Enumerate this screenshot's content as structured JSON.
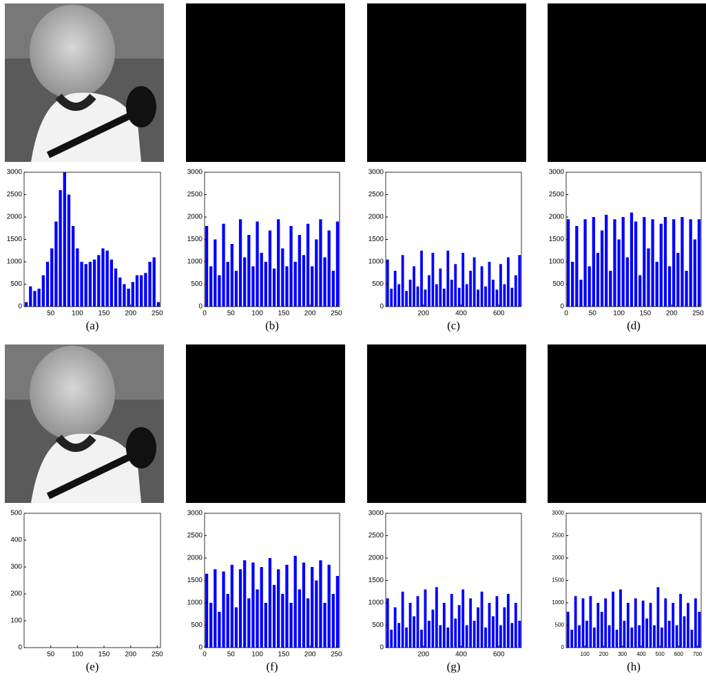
{
  "chart_data": [
    {
      "type": "histogram",
      "caption": "(a)",
      "color": "#0000ff",
      "xlim": [
        0,
        256
      ],
      "ylim": [
        0,
        3000
      ],
      "xticks": [
        50,
        100,
        150,
        200,
        250
      ],
      "yticks": [
        0,
        500,
        1000,
        1500,
        2000,
        2500,
        3000
      ],
      "bins": [
        0,
        8,
        16,
        24,
        32,
        40,
        48,
        56,
        64,
        72,
        80,
        88,
        96,
        104,
        112,
        120,
        128,
        136,
        144,
        152,
        160,
        168,
        176,
        184,
        192,
        200,
        208,
        216,
        224,
        232,
        240,
        248,
        256
      ],
      "values": [
        100,
        450,
        350,
        400,
        700,
        1000,
        1300,
        1900,
        2600,
        3000,
        2500,
        1800,
        1300,
        1000,
        950,
        1000,
        1050,
        1150,
        1300,
        1250,
        1050,
        850,
        650,
        500,
        400,
        550,
        700,
        700,
        750,
        1000,
        1100,
        100
      ]
    },
    {
      "type": "histogram",
      "caption": "(b)",
      "color": "#0000ff",
      "xlim": [
        0,
        256
      ],
      "ylim": [
        0,
        3000
      ],
      "xticks": [
        0,
        50,
        100,
        150,
        200,
        250
      ],
      "yticks": [
        0,
        500,
        1000,
        1500,
        2000,
        2500,
        3000
      ],
      "bins": [
        0,
        8,
        16,
        24,
        32,
        40,
        48,
        56,
        64,
        72,
        80,
        88,
        96,
        104,
        112,
        120,
        128,
        136,
        144,
        152,
        160,
        168,
        176,
        184,
        192,
        200,
        208,
        216,
        224,
        232,
        240,
        248,
        256
      ],
      "values": [
        1800,
        900,
        1500,
        700,
        1850,
        1000,
        1400,
        800,
        1950,
        1100,
        1600,
        900,
        1900,
        1200,
        1000,
        1700,
        850,
        1950,
        1300,
        900,
        1800,
        1000,
        1600,
        1150,
        1850,
        900,
        1500,
        1950,
        1100,
        1700,
        800,
        1900
      ]
    },
    {
      "type": "histogram",
      "caption": "(c)",
      "color": "#0000ff",
      "xlim": [
        0,
        720
      ],
      "ylim": [
        0,
        3000
      ],
      "xticks": [
        200,
        400,
        600
      ],
      "yticks": [
        0,
        500,
        1000,
        1500,
        2000,
        2500,
        3000
      ],
      "bins": [
        0,
        20,
        40,
        60,
        80,
        100,
        120,
        140,
        160,
        180,
        200,
        220,
        240,
        260,
        280,
        300,
        320,
        340,
        360,
        380,
        400,
        420,
        440,
        460,
        480,
        500,
        520,
        540,
        560,
        580,
        600,
        620,
        640,
        660,
        680,
        700,
        720
      ],
      "values": [
        1050,
        400,
        800,
        500,
        1150,
        350,
        600,
        900,
        450,
        1250,
        380,
        700,
        1200,
        500,
        850,
        400,
        1250,
        600,
        950,
        420,
        1200,
        500,
        800,
        1100,
        380,
        900,
        450,
        1000,
        600,
        380,
        950,
        500,
        1100,
        420,
        700,
        1150
      ]
    },
    {
      "type": "histogram",
      "caption": "(d)",
      "color": "#0000ff",
      "xlim": [
        0,
        256
      ],
      "ylim": [
        0,
        3000
      ],
      "xticks": [
        0,
        50,
        100,
        150,
        200,
        250
      ],
      "yticks": [
        0,
        500,
        1000,
        1500,
        2000,
        2500,
        3000
      ],
      "bins": [
        0,
        8,
        16,
        24,
        32,
        40,
        48,
        56,
        64,
        72,
        80,
        88,
        96,
        104,
        112,
        120,
        128,
        136,
        144,
        152,
        160,
        168,
        176,
        184,
        192,
        200,
        208,
        216,
        224,
        232,
        240,
        248,
        256
      ],
      "values": [
        1950,
        1000,
        1800,
        600,
        1950,
        900,
        2000,
        1200,
        1700,
        2050,
        800,
        1950,
        1500,
        2000,
        1100,
        2100,
        1900,
        700,
        2000,
        1300,
        1950,
        1000,
        1850,
        2000,
        900,
        1950,
        1200,
        2000,
        800,
        1950,
        1500,
        1950
      ]
    },
    {
      "type": "histogram",
      "caption": "(e)",
      "color": "#0000ff",
      "xlim": [
        0,
        256
      ],
      "ylim": [
        0,
        500
      ],
      "xticks": [
        50,
        100,
        150,
        200,
        250
      ],
      "yticks": [
        0,
        100,
        200,
        300,
        400,
        500
      ]
    },
    {
      "type": "histogram",
      "caption": "(f)",
      "color": "#0000ff",
      "xlim": [
        0,
        256
      ],
      "ylim": [
        0,
        3000
      ],
      "xticks": [
        0,
        50,
        100,
        150,
        200,
        250
      ],
      "yticks": [
        0,
        500,
        1000,
        1500,
        2000,
        2500,
        3000
      ],
      "bins": [
        0,
        8,
        16,
        24,
        32,
        40,
        48,
        56,
        64,
        72,
        80,
        88,
        96,
        104,
        112,
        120,
        128,
        136,
        144,
        152,
        160,
        168,
        176,
        184,
        192,
        200,
        208,
        216,
        224,
        232,
        240,
        248,
        256
      ],
      "values": [
        1650,
        1000,
        1750,
        800,
        1700,
        1200,
        1850,
        900,
        1750,
        1950,
        1100,
        1900,
        1300,
        1800,
        1000,
        2000,
        1400,
        1750,
        1200,
        1850,
        1000,
        2050,
        1300,
        1900,
        1100,
        1800,
        1500,
        1950,
        1000,
        1850,
        1200,
        1600
      ]
    },
    {
      "type": "histogram",
      "caption": "(g)",
      "color": "#0000ff",
      "xlim": [
        0,
        720
      ],
      "ylim": [
        0,
        3000
      ],
      "xticks": [
        200,
        400,
        600
      ],
      "yticks": [
        0,
        500,
        1000,
        1500,
        2000,
        2500,
        3000
      ],
      "bins": [
        0,
        20,
        40,
        60,
        80,
        100,
        120,
        140,
        160,
        180,
        200,
        220,
        240,
        260,
        280,
        300,
        320,
        340,
        360,
        380,
        400,
        420,
        440,
        460,
        480,
        500,
        520,
        540,
        560,
        580,
        600,
        620,
        640,
        660,
        680,
        700,
        720
      ],
      "values": [
        1100,
        400,
        900,
        550,
        1250,
        450,
        1000,
        700,
        1150,
        400,
        1300,
        600,
        850,
        1350,
        500,
        1000,
        450,
        1200,
        650,
        950,
        1300,
        500,
        1100,
        600,
        900,
        1250,
        450,
        1000,
        700,
        1150,
        500,
        900,
        1200,
        550,
        1000,
        600
      ]
    },
    {
      "type": "histogram",
      "caption": "(h)",
      "color": "#0000ff",
      "xlim": [
        0,
        720
      ],
      "ylim": [
        0,
        3000
      ],
      "xticks": [
        100,
        200,
        300,
        400,
        500,
        600,
        700
      ],
      "yticks": [
        0,
        500,
        1000,
        1500,
        2000,
        2500,
        3000
      ],
      "bins": [
        0,
        20,
        40,
        60,
        80,
        100,
        120,
        140,
        160,
        180,
        200,
        220,
        240,
        260,
        280,
        300,
        320,
        340,
        360,
        380,
        400,
        420,
        440,
        460,
        480,
        500,
        520,
        540,
        560,
        580,
        600,
        620,
        640,
        660,
        680,
        700,
        720
      ],
      "values": [
        800,
        400,
        1150,
        500,
        1100,
        600,
        1150,
        450,
        1000,
        800,
        1100,
        500,
        1250,
        400,
        1300,
        600,
        1000,
        450,
        1100,
        500,
        1050,
        650,
        1000,
        500,
        1350,
        450,
        1100,
        600,
        1000,
        500,
        1200,
        700,
        1000,
        400,
        1100,
        800
      ]
    }
  ]
}
